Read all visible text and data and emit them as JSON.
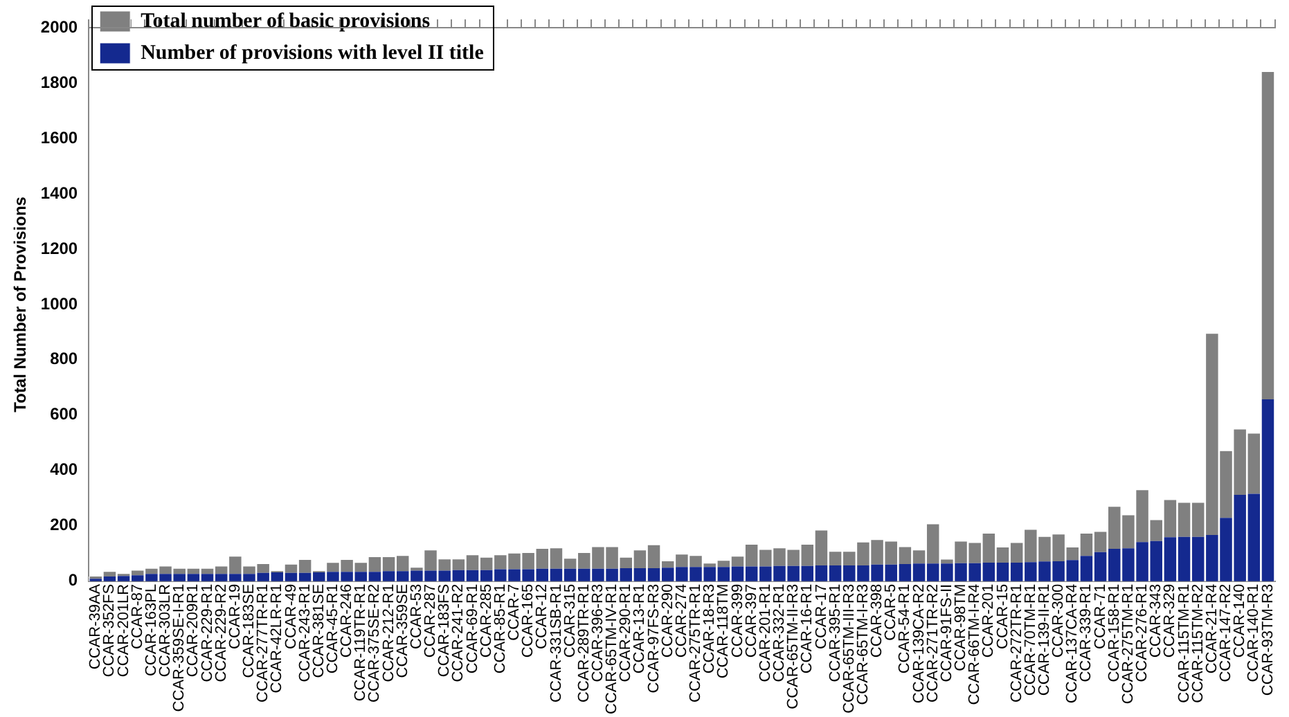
{
  "chart_data": {
    "type": "bar",
    "stacked": true,
    "ylabel": "Total Number of Provisions",
    "legend": "top left",
    "ylim": [
      0,
      2000
    ],
    "yticks": [
      0,
      200,
      400,
      600,
      800,
      1000,
      1200,
      1400,
      1600,
      1800,
      2000
    ],
    "categories": [
      "CCAR-39AA",
      "CCAR-352FS",
      "CCAR-201LR",
      "CCAR-87",
      "CCAR-163PL",
      "CCAR-303LR",
      "CCAR-359SE-I-R1",
      "CCAR-209R1",
      "CCAR-229-R1",
      "CCAR-229-R2",
      "CCAR-19",
      "CCAR-183SE",
      "CCAR-277TR-R1",
      "CCAR-42LR-R1",
      "CCAR-49",
      "CCAR-243-R1",
      "CCAR-381SE",
      "CCAR-45-R1",
      "CCAR-246",
      "CCAR-119TR-R1",
      "CCAR-375SE-R2",
      "CCAR-212-R1",
      "CCAR-359SE",
      "CCAR-53",
      "CCAR-287",
      "CCAR-183FS",
      "CCAR-241-R2",
      "CCAR-69-R1",
      "CCAR-285",
      "CCAR-85-R1",
      "CCAR-7",
      "CCAR-165",
      "CCAR-12",
      "CCAR-331SB-R1",
      "CCAR-315",
      "CCAR-289TR-R1",
      "CCAR-396-R3",
      "CCAR-65TM-IV-R1",
      "CCAR-290-R1",
      "CCAR-13-R1",
      "CCAR-97FS-R3",
      "CCAR-290",
      "CCAR-274",
      "CCAR-275TR-R1",
      "CCAR-18-R3",
      "CCAR-118TM",
      "CCAR-399",
      "CCAR-397",
      "CCAR-201-R1",
      "CCAR-332-R1",
      "CCAR-65TM-II-R3",
      "CCAR-16-R1",
      "CCAR-17",
      "CCAR-395-R1",
      "CCAR-65TM-III-R3",
      "CCAR-65TM-I-R3",
      "CCAR-398",
      "CCAR-5",
      "CCAR-54-R1",
      "CCAR-139CA-R2",
      "CCAR-271TR-R2",
      "CCAR-91FS-II",
      "CCAR-98TM",
      "CCAR-66TM-I-R4",
      "CCAR-201",
      "CCAR-15",
      "CCAR-272TR-R1",
      "CCAR-70TM-R1",
      "CCAR-139-II-R1",
      "CCAR-300",
      "CCAR-137CA-R4",
      "CCAR-339-R1",
      "CCAR-71",
      "CCAR-158-R1",
      "CCAR-275TM-R1",
      "CCAR-276-R1",
      "CCAR-343",
      "CCAR-329",
      "CCAR-115TM-R1",
      "CCAR-115TM-R2",
      "CCAR-21-R4",
      "CCAR-147-R2",
      "CCAR-140",
      "CCAR-140-R1",
      "CCAR-93TM-R3"
    ],
    "series": [
      {
        "name": "Number of provisions with level II title",
        "color": "#14298f",
        "values": [
          9,
          17,
          19,
          21,
          26,
          26,
          26,
          26,
          26,
          26,
          26,
          26,
          30,
          32,
          30,
          30,
          32,
          34,
          34,
          34,
          34,
          36,
          36,
          38,
          38,
          38,
          40,
          40,
          40,
          43,
          43,
          43,
          45,
          45,
          45,
          45,
          45,
          45,
          47,
          47,
          47,
          49,
          51,
          51,
          51,
          51,
          53,
          53,
          53,
          55,
          55,
          55,
          57,
          57,
          57,
          57,
          60,
          60,
          62,
          64,
          64,
          64,
          65,
          65,
          67,
          67,
          67,
          69,
          71,
          72,
          76,
          91,
          105,
          117,
          119,
          141,
          145,
          159,
          160,
          160,
          167,
          229,
          312,
          316,
          657
        ]
      },
      {
        "name": "Total number of basic provisions",
        "color": "#808080",
        "values": [
          8,
          17,
          7,
          17,
          19,
          27,
          19,
          19,
          19,
          27,
          63,
          27,
          32,
          4,
          30,
          47,
          4,
          32,
          43,
          32,
          53,
          51,
          55,
          11,
          73,
          41,
          39,
          54,
          45,
          51,
          57,
          59,
          72,
          74,
          36,
          57,
          78,
          78,
          38,
          64,
          83,
          23,
          45,
          40,
          13,
          23,
          36,
          79,
          60,
          64,
          58,
          77,
          126,
          49,
          49,
          83,
          89,
          83,
          61,
          47,
          142,
          14,
          78,
          73,
          105,
          55,
          71,
          117,
          89,
          97,
          46,
          81,
          73,
          152,
          119,
          188,
          76,
          134,
          123,
          123,
          727,
          241,
          236,
          217,
          1183
        ]
      }
    ]
  }
}
